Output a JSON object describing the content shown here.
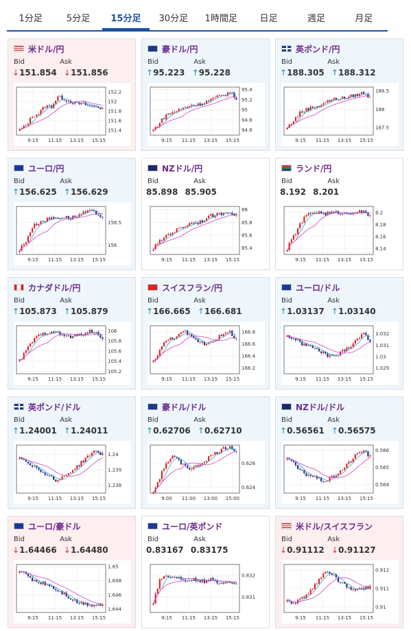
{
  "tabs": [
    {
      "label": "1分足",
      "active": false
    },
    {
      "label": "5分足",
      "active": false
    },
    {
      "label": "15分足",
      "active": true
    },
    {
      "label": "30分足",
      "active": false
    },
    {
      "label": "1時間足",
      "active": false
    },
    {
      "label": "日足",
      "active": false
    },
    {
      "label": "週足",
      "active": false
    },
    {
      "label": "月足",
      "active": false
    }
  ],
  "labels": {
    "bid": "Bid",
    "ask": "Ask"
  },
  "colors": {
    "up_bg": "#eef6fc",
    "down_bg": "#fdeef0",
    "pair_text": "#6b2a8c",
    "tab_active": "#1a4fa0",
    "candle_up": "#e02020",
    "candle_down": "#1a2f8a",
    "ma_short": "#3aa0c8",
    "ma_long": "#d040c0"
  },
  "cards": [
    {
      "pair": "米ドル/円",
      "flag": "us-jp-flag-icon",
      "dir": "down",
      "bid": "151.854",
      "ask": "151.856",
      "chart_data": {
        "type": "candlestick",
        "x_ticks": [
          "9:15",
          "11:15",
          "13:15",
          "15:15"
        ],
        "y_ticks": [
          "152.2",
          "152",
          "151.8",
          "151.6",
          "151.4"
        ],
        "ylim": [
          151.3,
          152.3
        ],
        "trend": [
          151.4,
          151.5,
          151.7,
          151.75,
          151.9,
          151.9,
          152.1,
          152.05,
          152.0,
          151.95,
          151.95,
          151.9,
          151.9,
          151.85
        ]
      }
    },
    {
      "pair": "豪ドル/円",
      "flag": "au-jp-flag-icon",
      "dir": "up",
      "bid": "95.223",
      "ask": "95.228",
      "chart_data": {
        "type": "candlestick",
        "x_ticks": [
          "9:15",
          "11:15",
          "13:15",
          "15:15"
        ],
        "y_ticks": [
          "95.4",
          "95.2",
          "95",
          "94.8",
          "94.6"
        ],
        "ylim": [
          94.5,
          95.45
        ],
        "trend": [
          94.6,
          94.75,
          94.9,
          94.95,
          95.0,
          95.05,
          95.1,
          95.1,
          95.15,
          95.2,
          95.25,
          95.3,
          95.35,
          95.22
        ]
      }
    },
    {
      "pair": "英ポンド/円",
      "flag": "gb-jp-flag-icon",
      "dir": "up",
      "bid": "188.305",
      "ask": "188.312",
      "chart_data": {
        "type": "candlestick",
        "x_ticks": [
          "9:15",
          "11:15",
          "13:15",
          "15:15"
        ],
        "y_ticks": [
          "188.5",
          "188",
          "187.5"
        ],
        "ylim": [
          187.3,
          188.6
        ],
        "trend": [
          187.5,
          187.7,
          187.9,
          188.0,
          188.05,
          188.1,
          188.2,
          188.25,
          188.3,
          188.3,
          188.35,
          188.4,
          188.45,
          188.3
        ]
      }
    },
    {
      "pair": "ユーロ/円",
      "flag": "eu-jp-flag-icon",
      "dir": "up",
      "bid": "156.625",
      "ask": "156.629",
      "chart_data": {
        "type": "candlestick",
        "x_ticks": [
          "9:15",
          "11:15",
          "13:15",
          "15:15"
        ],
        "y_ticks": [
          "156.5",
          "156"
        ],
        "ylim": [
          155.8,
          156.85
        ],
        "trend": [
          155.9,
          156.1,
          156.4,
          156.5,
          156.55,
          156.6,
          156.6,
          156.62,
          156.6,
          156.65,
          156.7,
          156.75,
          156.7,
          156.62
        ]
      }
    },
    {
      "pair": "NZドル/円",
      "flag": "nz-jp-flag-icon",
      "dir": "flat",
      "bid": "85.898",
      "ask": "85.905",
      "chart_data": {
        "type": "candlestick",
        "x_ticks": [
          "9:15",
          "11:15",
          "13:15",
          "15:15"
        ],
        "y_ticks": [
          "86",
          "85.8",
          "85.6",
          "85.4"
        ],
        "ylim": [
          85.3,
          86.05
        ],
        "trend": [
          85.4,
          85.5,
          85.6,
          85.65,
          85.7,
          85.75,
          85.8,
          85.8,
          85.85,
          85.9,
          85.92,
          85.95,
          85.98,
          85.9
        ]
      }
    },
    {
      "pair": "ランド/円",
      "flag": "za-jp-flag-icon",
      "dir": "flat",
      "bid": "8.192",
      "ask": "8.201",
      "chart_data": {
        "type": "candlestick",
        "x_ticks": [
          "9:15",
          "11:15",
          "13:15",
          "15:15"
        ],
        "y_ticks": [
          "8.2",
          "8.18",
          "8.16",
          "8.14"
        ],
        "ylim": [
          8.13,
          8.21
        ],
        "trend": [
          8.14,
          8.16,
          8.18,
          8.195,
          8.2,
          8.2,
          8.198,
          8.2,
          8.2,
          8.198,
          8.2,
          8.202,
          8.2,
          8.195
        ]
      }
    },
    {
      "pair": "カナダドル/円",
      "flag": "ca-jp-flag-icon",
      "dir": "up",
      "bid": "105.873",
      "ask": "105.879",
      "chart_data": {
        "type": "candlestick",
        "x_ticks": [
          "9:15",
          "11:15",
          "13:15",
          "15:15"
        ],
        "y_ticks": [
          "106",
          "105.8",
          "105.6",
          "105.4",
          "105.2"
        ],
        "ylim": [
          105.15,
          106.1
        ],
        "trend": [
          105.4,
          105.6,
          105.8,
          105.9,
          105.95,
          106.0,
          105.95,
          105.9,
          105.88,
          105.9,
          105.95,
          105.98,
          105.95,
          105.87
        ]
      }
    },
    {
      "pair": "スイスフラン/円",
      "flag": "ch-jp-flag-icon",
      "dir": "up",
      "bid": "166.665",
      "ask": "166.681",
      "chart_data": {
        "type": "candlestick",
        "x_ticks": [
          "9:15",
          "11:15",
          "13:15",
          "15:15"
        ],
        "y_ticks": [
          "166.8",
          "166.6",
          "166.4",
          "166.2"
        ],
        "ylim": [
          166.1,
          166.9
        ],
        "trend": [
          166.3,
          166.5,
          166.65,
          166.7,
          166.75,
          166.8,
          166.7,
          166.65,
          166.6,
          166.65,
          166.7,
          166.75,
          166.8,
          166.67
        ]
      }
    },
    {
      "pair": "ユーロ/ドル",
      "flag": "eu-us-flag-icon",
      "dir": "up",
      "bid": "1.03137",
      "ask": "1.03140",
      "chart_data": {
        "type": "candlestick",
        "x_ticks": [
          "9:15",
          "11:15",
          "13:15",
          "15:15"
        ],
        "y_ticks": [
          "1.032",
          "1.031",
          "1.03",
          "1.029"
        ],
        "ylim": [
          1.0285,
          1.0327
        ],
        "trend": [
          1.0318,
          1.0316,
          1.0312,
          1.031,
          1.0308,
          1.0305,
          1.0302,
          1.03,
          1.0302,
          1.0306,
          1.031,
          1.0316,
          1.032,
          1.0314
        ]
      }
    },
    {
      "pair": "英ポンド/ドル",
      "flag": "gb-us-flag-icon",
      "dir": "up",
      "bid": "1.24001",
      "ask": "1.24011",
      "chart_data": {
        "type": "candlestick",
        "x_ticks": [
          "9:15",
          "11:15",
          "13:15",
          "15:15"
        ],
        "y_ticks": [
          "1.24",
          "1.239",
          "1.238"
        ],
        "ylim": [
          1.2375,
          1.2406
        ],
        "trend": [
          1.2398,
          1.2396,
          1.2393,
          1.239,
          1.2388,
          1.2385,
          1.2383,
          1.2386,
          1.2389,
          1.2392,
          1.2396,
          1.24,
          1.2402,
          1.24
        ]
      }
    },
    {
      "pair": "豪ドル/ドル",
      "flag": "au-us-flag-icon",
      "dir": "up",
      "bid": "0.62706",
      "ask": "0.62710",
      "chart_data": {
        "type": "candlestick",
        "x_ticks": [
          "9:00",
          "11:00",
          "13:00",
          "15:00"
        ],
        "y_ticks": [
          "0.626",
          "0.624"
        ],
        "ylim": [
          0.6235,
          0.6275
        ],
        "trend": [
          0.6236,
          0.6248,
          0.626,
          0.6265,
          0.6262,
          0.6258,
          0.6255,
          0.6258,
          0.6262,
          0.6266,
          0.6269,
          0.6272,
          0.6274,
          0.627
        ]
      }
    },
    {
      "pair": "NZドル/ドル",
      "flag": "nz-us-flag-icon",
      "dir": "up",
      "bid": "0.56561",
      "ask": "0.56575",
      "chart_data": {
        "type": "candlestick",
        "x_ticks": [
          "9:15",
          "11:15",
          "13:15",
          "15:15"
        ],
        "y_ticks": [
          "0.566",
          "0.565",
          "0.564"
        ],
        "ylim": [
          0.5635,
          0.5663
        ],
        "trend": [
          0.5656,
          0.5652,
          0.5648,
          0.5646,
          0.5645,
          0.5643,
          0.5642,
          0.5644,
          0.5647,
          0.565,
          0.5654,
          0.5658,
          0.566,
          0.5656
        ]
      }
    },
    {
      "pair": "ユーロ/豪ドル",
      "flag": "eu-au-flag-icon",
      "dir": "down",
      "bid": "1.64466",
      "ask": "1.64480",
      "chart_data": {
        "type": "candlestick",
        "x_ticks": [
          "9:15",
          "11:15",
          "13:15",
          "15:15"
        ],
        "y_ticks": [
          "1.65",
          "1.648",
          "1.646",
          "1.644"
        ],
        "ylim": [
          1.6435,
          1.6503
        ],
        "trend": [
          1.6495,
          1.6488,
          1.6482,
          1.6478,
          1.6476,
          1.6472,
          1.6466,
          1.6462,
          1.6455,
          1.645,
          1.6448,
          1.6446,
          1.6446,
          1.6447
        ]
      }
    },
    {
      "pair": "ユーロ/英ポンド",
      "flag": "eu-gb-flag-icon",
      "dir": "flat",
      "bid": "0.83167",
      "ask": "0.83175",
      "chart_data": {
        "type": "candlestick",
        "x_ticks": [
          "9:15",
          "11:15",
          "13:15",
          "15:15"
        ],
        "y_ticks": [
          "0.832",
          "0.831"
        ],
        "ylim": [
          0.8303,
          0.8325
        ],
        "trend": [
          0.8308,
          0.8318,
          0.832,
          0.8319,
          0.8319,
          0.8318,
          0.8318,
          0.8318,
          0.8317,
          0.8318,
          0.8317,
          0.8317,
          0.8317,
          0.8317
        ]
      }
    },
    {
      "pair": "米ドル/スイスフラン",
      "flag": "us-ch-flag-icon",
      "dir": "down",
      "bid": "0.91112",
      "ask": "0.91127",
      "chart_data": {
        "type": "candlestick",
        "x_ticks": [
          "9:15",
          "11:15",
          "13:15",
          "15:15"
        ],
        "y_ticks": [
          "0.912",
          "0.911",
          "0.91"
        ],
        "ylim": [
          0.9097,
          0.9123
        ],
        "trend": [
          0.9103,
          0.9102,
          0.9104,
          0.9106,
          0.911,
          0.9115,
          0.912,
          0.9118,
          0.9114,
          0.9112,
          0.911,
          0.9109,
          0.911,
          0.9111
        ]
      }
    }
  ]
}
